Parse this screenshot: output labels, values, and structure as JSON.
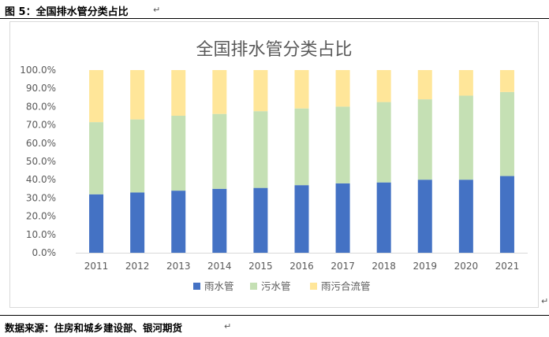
{
  "caption": "图 5：全国排水管分类占比",
  "source": "数据来源：住房和城乡建设部、银河期货",
  "para_mark": "↵",
  "chart_data": {
    "type": "bar",
    "stacked": true,
    "percent": true,
    "title": "全国排水管分类占比",
    "categories": [
      "2011",
      "2012",
      "2013",
      "2014",
      "2015",
      "2016",
      "2017",
      "2018",
      "2019",
      "2020",
      "2021"
    ],
    "y_ticks": [
      "0.0%",
      "10.0%",
      "20.0%",
      "30.0%",
      "40.0%",
      "50.0%",
      "60.0%",
      "70.0%",
      "80.0%",
      "90.0%",
      "100.0%"
    ],
    "ylim": [
      0,
      100
    ],
    "grid": false,
    "legend_position": "bottom",
    "series": [
      {
        "name": "雨水管",
        "color": "#4472c4",
        "values": [
          32,
          33,
          34,
          35,
          35.5,
          37,
          38,
          38.5,
          40,
          40,
          42
        ]
      },
      {
        "name": "污水管",
        "color": "#c5e0b4",
        "values": [
          39.5,
          40,
          41,
          41,
          42,
          42,
          42,
          44,
          44,
          46,
          46
        ]
      },
      {
        "name": "雨污合流管",
        "color": "#ffe699",
        "values": [
          28.5,
          27,
          25,
          24,
          22.5,
          21,
          20,
          17.5,
          16,
          14,
          12
        ]
      }
    ]
  }
}
